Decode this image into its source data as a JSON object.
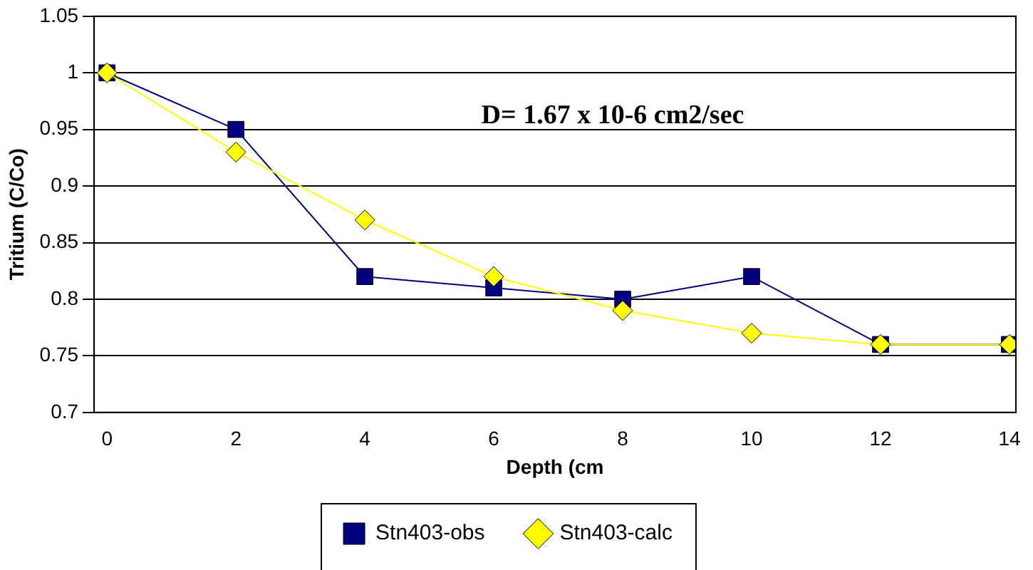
{
  "chart_data": {
    "type": "line",
    "xlabel": "Depth (cm",
    "ylabel": "Tritium (C/Co)",
    "annotations": [
      "D= 1.67 x 10-6 cm2/sec"
    ],
    "x": [
      0,
      2,
      4,
      6,
      8,
      10,
      12,
      14
    ],
    "series": [
      {
        "name": "Stn403-obs",
        "color": "#000080",
        "marker": "square",
        "values": [
          1,
          0.95,
          0.82,
          0.81,
          0.8,
          0.82,
          0.76,
          0.76
        ]
      },
      {
        "name": "Stn403-calc",
        "color": "#ffff00",
        "marker": "diamond",
        "values": [
          1,
          0.93,
          0.87,
          0.82,
          0.79,
          0.77,
          0.76,
          0.76
        ]
      }
    ],
    "xlim": [
      -0.2,
      14.1
    ],
    "xticks": [
      0,
      2,
      4,
      6,
      8,
      10,
      12,
      14
    ],
    "ylim": [
      0.7,
      1.05
    ],
    "yticks": [
      0.7,
      0.75,
      0.8,
      0.85,
      0.9,
      0.95,
      1,
      1.05
    ],
    "grid": "y",
    "legend": "bottom",
    "line_style": "solid"
  }
}
